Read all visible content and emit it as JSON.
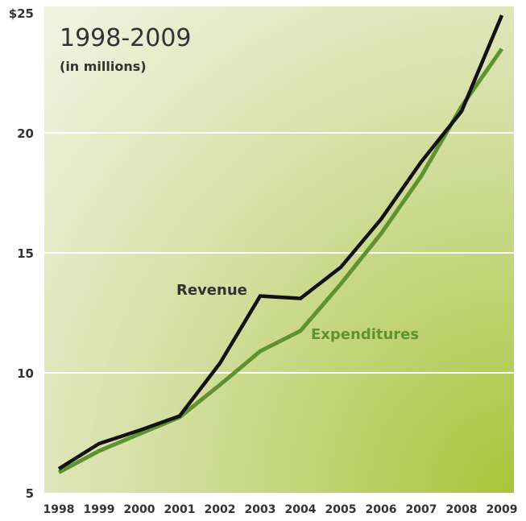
{
  "chart_data": {
    "type": "line",
    "title": "1998-2009",
    "subtitle": "(in millions)",
    "xlabel": "",
    "ylabel": "",
    "x": [
      "1998",
      "1999",
      "2000",
      "2001",
      "2002",
      "2003",
      "2004",
      "2005",
      "2006",
      "2007",
      "2008",
      "2009"
    ],
    "xlim": [
      "1998",
      "2009"
    ],
    "ylim": [
      5,
      25
    ],
    "yticks": [
      {
        "value": 25,
        "label": "$25"
      },
      {
        "value": 20,
        "label": "20"
      },
      {
        "value": 15,
        "label": "15"
      },
      {
        "value": 10,
        "label": "10"
      },
      {
        "value": 5,
        "label": "5"
      }
    ],
    "grid": true,
    "series": [
      {
        "name": "Revenue",
        "color": "#111111",
        "values": [
          6.0,
          7.05,
          7.6,
          8.2,
          10.4,
          13.2,
          13.1,
          14.4,
          16.4,
          18.8,
          20.9,
          24.9
        ]
      },
      {
        "name": "Expenditures",
        "color": "#5e9330",
        "values": [
          5.85,
          6.75,
          7.45,
          8.15,
          9.5,
          10.9,
          11.75,
          13.7,
          15.8,
          18.2,
          21.1,
          23.5
        ]
      }
    ],
    "background_colors": {
      "light": "#eff2df",
      "dark": "#a9c43a"
    },
    "gridline_color": "#ffffff"
  }
}
